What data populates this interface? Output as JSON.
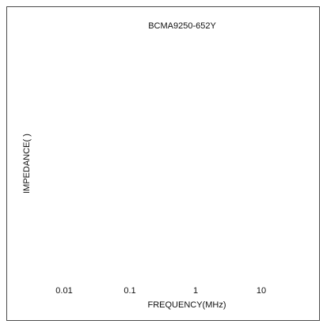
{
  "chart_data": {
    "type": "line",
    "title": "BCMA9250-652Y",
    "xlabel": "FREQUENCY(MHz)",
    "ylabel": "IMPEDANCE(  )",
    "x_scale": "log",
    "x_ticks": [
      "0.01",
      "0.1",
      "1",
      "10"
    ],
    "x_tick_values": [
      0.01,
      0.1,
      1,
      10
    ],
    "y_ticks": [],
    "series": [],
    "grid": false,
    "legend": "none"
  }
}
